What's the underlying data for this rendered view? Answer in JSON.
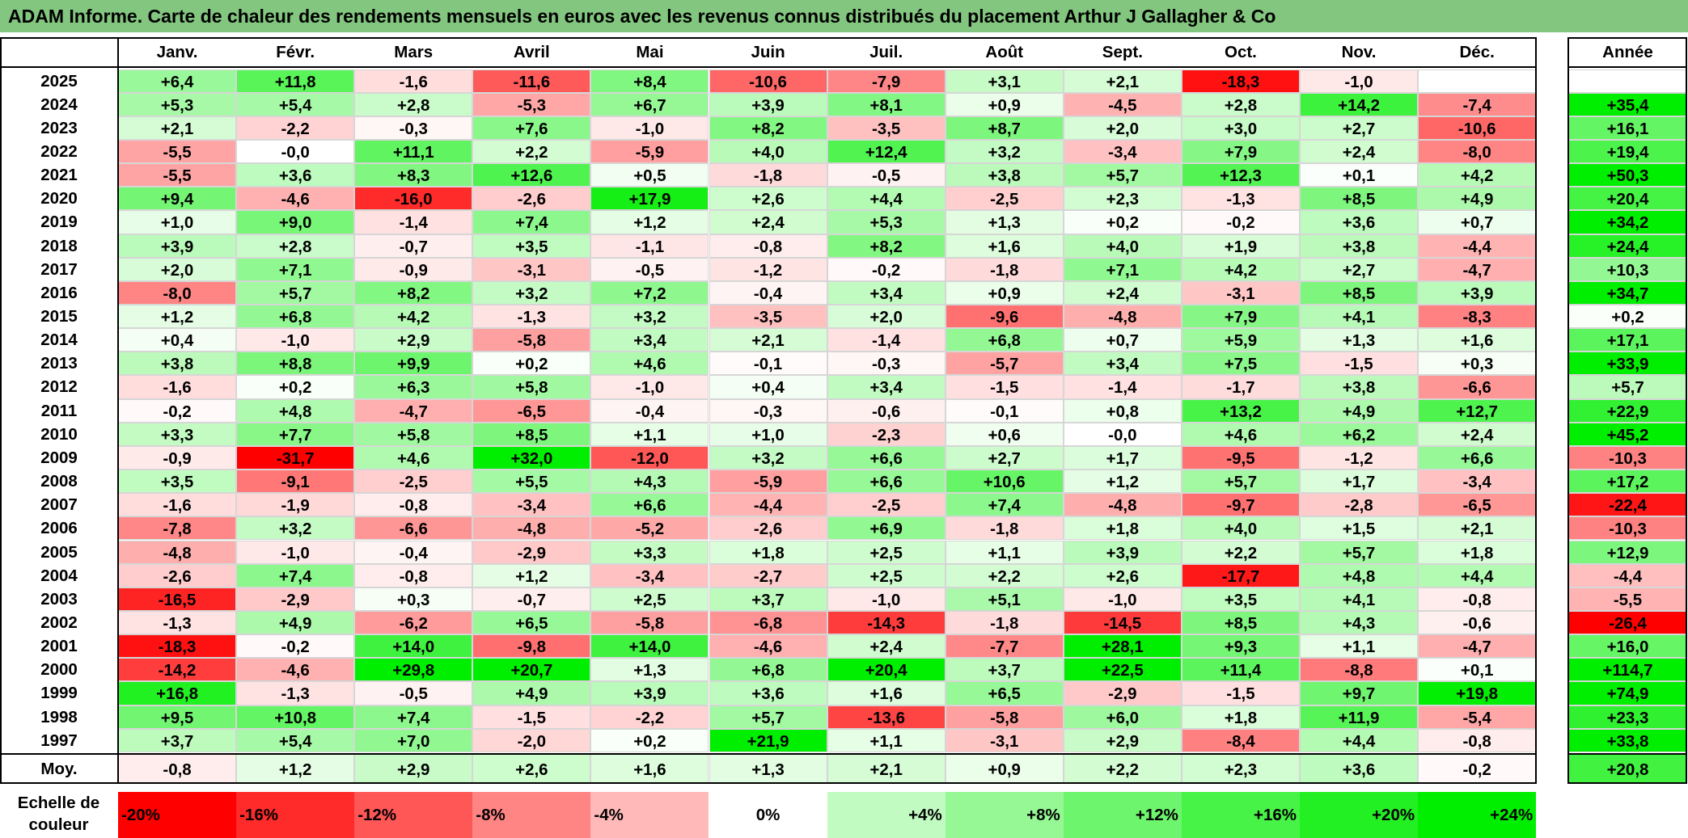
{
  "title": "ADAM Informe. Carte de chaleur des rendements mensuels en euros avec les revenus connus distribués du placement Arthur J Gallagher & Co",
  "chart_data": {
    "type": "heatmap",
    "title": "ADAM Informe. Carte de chaleur des rendements mensuels en euros avec les revenus connus distribués du placement Arthur J Gallagher & Co",
    "months": [
      "Janv.",
      "Févr.",
      "Mars",
      "Avril",
      "Mai",
      "Juin",
      "Juil.",
      "Août",
      "Sept.",
      "Oct.",
      "Nov.",
      "Déc."
    ],
    "annual_label": "Année",
    "avg_label": "Moy.",
    "rows": [
      {
        "year": "2025",
        "values": [
          "+6,4",
          "+11,8",
          "-1,6",
          "-11,6",
          "+8,4",
          "-10,6",
          "-7,9",
          "+3,1",
          "+2,1",
          "-18,3",
          "-1,0",
          ""
        ],
        "annual": ""
      },
      {
        "year": "2024",
        "values": [
          "+5,3",
          "+5,4",
          "+2,8",
          "-5,3",
          "+6,7",
          "+3,9",
          "+8,1",
          "+0,9",
          "-4,5",
          "+2,8",
          "+14,2",
          "-7,4"
        ],
        "annual": "+35,4"
      },
      {
        "year": "2023",
        "values": [
          "+2,1",
          "-2,2",
          "-0,3",
          "+7,6",
          "-1,0",
          "+8,2",
          "-3,5",
          "+8,7",
          "+2,0",
          "+3,0",
          "+2,7",
          "-10,6"
        ],
        "annual": "+16,1"
      },
      {
        "year": "2022",
        "values": [
          "-5,5",
          "-0,0",
          "+11,1",
          "+2,2",
          "-5,9",
          "+4,0",
          "+12,4",
          "+3,2",
          "-3,4",
          "+7,9",
          "+2,4",
          "-8,0"
        ],
        "annual": "+19,4"
      },
      {
        "year": "2021",
        "values": [
          "-5,5",
          "+3,6",
          "+8,3",
          "+12,6",
          "+0,5",
          "-1,8",
          "-0,5",
          "+3,8",
          "+5,7",
          "+12,3",
          "+0,1",
          "+4,2"
        ],
        "annual": "+50,3"
      },
      {
        "year": "2020",
        "values": [
          "+9,4",
          "-4,6",
          "-16,0",
          "-2,6",
          "+17,9",
          "+2,6",
          "+4,4",
          "-2,5",
          "+2,3",
          "-1,3",
          "+8,5",
          "+4,9"
        ],
        "annual": "+20,4"
      },
      {
        "year": "2019",
        "values": [
          "+1,0",
          "+9,0",
          "-1,4",
          "+7,4",
          "+1,2",
          "+2,4",
          "+5,3",
          "+1,3",
          "+0,2",
          "-0,2",
          "+3,6",
          "+0,7"
        ],
        "annual": "+34,2"
      },
      {
        "year": "2018",
        "values": [
          "+3,9",
          "+2,8",
          "-0,7",
          "+3,5",
          "-1,1",
          "-0,8",
          "+8,2",
          "+1,6",
          "+4,0",
          "+1,9",
          "+3,8",
          "-4,4"
        ],
        "annual": "+24,4"
      },
      {
        "year": "2017",
        "values": [
          "+2,0",
          "+7,1",
          "-0,9",
          "-3,1",
          "-0,5",
          "-1,2",
          "-0,2",
          "-1,8",
          "+7,1",
          "+4,2",
          "+2,7",
          "-4,7"
        ],
        "annual": "+10,3"
      },
      {
        "year": "2016",
        "values": [
          "-8,0",
          "+5,7",
          "+8,2",
          "+3,2",
          "+7,2",
          "-0,4",
          "+3,4",
          "+0,9",
          "+2,4",
          "-3,1",
          "+8,5",
          "+3,9"
        ],
        "annual": "+34,7"
      },
      {
        "year": "2015",
        "values": [
          "+1,2",
          "+6,8",
          "+4,2",
          "-1,3",
          "+3,2",
          "-3,5",
          "+2,0",
          "-9,6",
          "-4,8",
          "+7,9",
          "+4,1",
          "-8,3"
        ],
        "annual": "+0,2"
      },
      {
        "year": "2014",
        "values": [
          "+0,4",
          "-1,0",
          "+2,9",
          "-5,8",
          "+3,4",
          "+2,1",
          "-1,4",
          "+6,8",
          "+0,7",
          "+5,9",
          "+1,3",
          "+1,6"
        ],
        "annual": "+17,1"
      },
      {
        "year": "2013",
        "values": [
          "+3,8",
          "+8,8",
          "+9,9",
          "+0,2",
          "+4,6",
          "-0,1",
          "-0,3",
          "-5,7",
          "+3,4",
          "+7,5",
          "-1,5",
          "+0,3"
        ],
        "annual": "+33,9"
      },
      {
        "year": "2012",
        "values": [
          "-1,6",
          "+0,2",
          "+6,3",
          "+5,8",
          "-1,0",
          "+0,4",
          "+3,4",
          "-1,5",
          "-1,4",
          "-1,7",
          "+3,8",
          "-6,6"
        ],
        "annual": "+5,7"
      },
      {
        "year": "2011",
        "values": [
          "-0,2",
          "+4,8",
          "-4,7",
          "-6,5",
          "-0,4",
          "-0,3",
          "-0,6",
          "-0,1",
          "+0,8",
          "+13,2",
          "+4,9",
          "+12,7"
        ],
        "annual": "+22,9"
      },
      {
        "year": "2010",
        "values": [
          "+3,3",
          "+7,7",
          "+5,8",
          "+8,5",
          "+1,1",
          "+1,0",
          "-2,3",
          "+0,6",
          "-0,0",
          "+4,6",
          "+6,2",
          "+2,4"
        ],
        "annual": "+45,2"
      },
      {
        "year": "2009",
        "values": [
          "-0,9",
          "-31,7",
          "+4,6",
          "+32,0",
          "-12,0",
          "+3,2",
          "+6,6",
          "+2,7",
          "+1,7",
          "-9,5",
          "-1,2",
          "+6,6"
        ],
        "annual": "-10,3"
      },
      {
        "year": "2008",
        "values": [
          "+3,5",
          "-9,1",
          "-2,5",
          "+5,5",
          "+4,3",
          "-5,9",
          "+6,6",
          "+10,6",
          "+1,2",
          "+5,7",
          "+1,7",
          "-3,4"
        ],
        "annual": "+17,2"
      },
      {
        "year": "2007",
        "values": [
          "-1,6",
          "-1,9",
          "-0,8",
          "-3,4",
          "+6,6",
          "-4,4",
          "-2,5",
          "+7,4",
          "-4,8",
          "-9,7",
          "-2,8",
          "-6,5"
        ],
        "annual": "-22,4"
      },
      {
        "year": "2006",
        "values": [
          "-7,8",
          "+3,2",
          "-6,6",
          "-4,8",
          "-5,2",
          "-2,6",
          "+6,9",
          "-1,8",
          "+1,8",
          "+4,0",
          "+1,5",
          "+2,1"
        ],
        "annual": "-10,3"
      },
      {
        "year": "2005",
        "values": [
          "-4,8",
          "-1,0",
          "-0,4",
          "-2,9",
          "+3,3",
          "+1,8",
          "+2,5",
          "+1,1",
          "+3,9",
          "+2,2",
          "+5,7",
          "+1,8"
        ],
        "annual": "+12,9"
      },
      {
        "year": "2004",
        "values": [
          "-2,6",
          "+7,4",
          "-0,8",
          "+1,2",
          "-3,4",
          "-2,7",
          "+2,5",
          "+2,2",
          "+2,6",
          "-17,7",
          "+4,8",
          "+4,4"
        ],
        "annual": "-4,4"
      },
      {
        "year": "2003",
        "values": [
          "-16,5",
          "-2,9",
          "+0,3",
          "-0,7",
          "+2,5",
          "+3,7",
          "-1,0",
          "+5,1",
          "-1,0",
          "+3,5",
          "+4,1",
          "-0,8"
        ],
        "annual": "-5,5"
      },
      {
        "year": "2002",
        "values": [
          "-1,3",
          "+4,9",
          "-6,2",
          "+6,5",
          "-5,8",
          "-6,8",
          "-14,3",
          "-1,8",
          "-14,5",
          "+8,5",
          "+4,3",
          "-0,6"
        ],
        "annual": "-26,4"
      },
      {
        "year": "2001",
        "values": [
          "-18,3",
          "-0,2",
          "+14,0",
          "-9,8",
          "+14,0",
          "-4,6",
          "+2,4",
          "-7,7",
          "+28,1",
          "+9,3",
          "+1,1",
          "-4,7"
        ],
        "annual": "+16,0"
      },
      {
        "year": "2000",
        "values": [
          "-14,2",
          "-4,6",
          "+29,8",
          "+20,7",
          "+1,3",
          "+6,8",
          "+20,4",
          "+3,7",
          "+22,5",
          "+11,4",
          "-8,8",
          "+0,1"
        ],
        "annual": "+114,7"
      },
      {
        "year": "1999",
        "values": [
          "+16,8",
          "-1,3",
          "-0,5",
          "+4,9",
          "+3,9",
          "+3,6",
          "+1,6",
          "+6,5",
          "-2,9",
          "-1,5",
          "+9,7",
          "+19,8"
        ],
        "annual": "+74,9"
      },
      {
        "year": "1998",
        "values": [
          "+9,5",
          "+10,8",
          "+7,4",
          "-1,5",
          "-2,2",
          "+5,7",
          "-13,6",
          "-5,8",
          "+6,0",
          "+1,8",
          "+11,9",
          "-5,4"
        ],
        "annual": "+23,3"
      },
      {
        "year": "1997",
        "values": [
          "+3,7",
          "+5,4",
          "+7,0",
          "-2,0",
          "+0,2",
          "+21,9",
          "+1,1",
          "-3,1",
          "+2,9",
          "-8,4",
          "+4,4",
          "-0,8"
        ],
        "annual": "+33,8"
      }
    ],
    "average": {
      "values": [
        "-0,8",
        "+1,2",
        "+2,9",
        "+2,6",
        "+1,6",
        "+1,3",
        "+2,1",
        "+0,9",
        "+2,2",
        "+2,3",
        "+3,6",
        "-0,2"
      ],
      "annual": "+20,8"
    },
    "scale": {
      "label": "Echelle de couleur",
      "stops": [
        "-20%",
        "-16%",
        "-12%",
        "-8%",
        "-4%",
        "0%",
        "+4%",
        "+8%",
        "+12%",
        "+16%",
        "+20%",
        "+24%"
      ],
      "stop_values": [
        -20,
        -16,
        -12,
        -8,
        -4,
        0,
        4,
        8,
        12,
        16,
        20,
        24
      ]
    },
    "colors": {
      "negative_max": "#ff0000",
      "neutral": "#ffffff",
      "positive_max": "#00ee00",
      "title_bar": "#83c67f"
    }
  }
}
